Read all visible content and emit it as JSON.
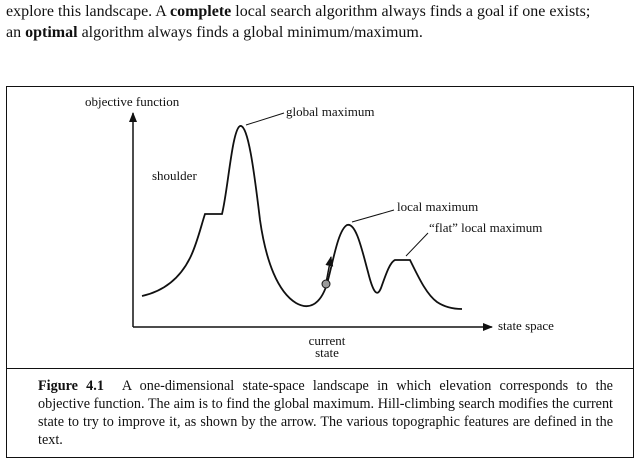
{
  "intro": {
    "line1_pre": "explore this landscape. A ",
    "line1_bold": "complete",
    "line1_post": " local search algorithm always finds a goal if one exists;",
    "line2_pre": "an ",
    "line2_bold": "optimal",
    "line2_post": " algorithm always finds a global minimum/maximum."
  },
  "figure": {
    "y_axis_label": "objective function",
    "x_axis_label": "state space",
    "labels": {
      "global_maximum": "global maximum",
      "shoulder": "shoulder",
      "local_maximum": "local maximum",
      "flat_local_maximum": "“flat” local maximum",
      "current_state_line1": "current",
      "current_state_line2": "state"
    }
  },
  "caption": {
    "number": "Figure 4.1",
    "text": "A one-dimensional state-space landscape in which elevation corresponds to the objective function. The aim is to find the global maximum. Hill-climbing search modifies the current state to try to improve it, as shown by the arrow. The various topographic features are defined in the text."
  }
}
